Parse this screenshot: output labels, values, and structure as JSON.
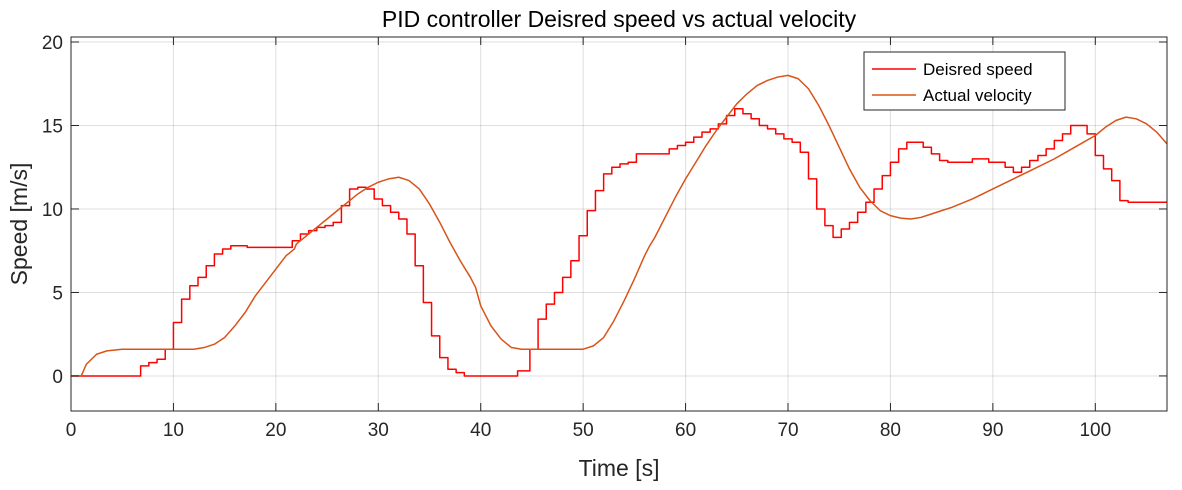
{
  "chart_data": {
    "type": "line",
    "title": "PID controller Deisred speed vs actual velocity",
    "xlabel": "Time [s]",
    "ylabel": "Speed [m/s]",
    "xlim": [
      0,
      107
    ],
    "ylim": [
      -2.1,
      20.3
    ],
    "xticks": [
      0,
      10,
      20,
      30,
      40,
      50,
      60,
      70,
      80,
      90,
      100
    ],
    "yticks": [
      0,
      5,
      10,
      15,
      20
    ],
    "grid": true,
    "box": true,
    "legend_position": "top-right",
    "series": [
      {
        "name": "Deisred speed",
        "color": "#ff0000",
        "step": true,
        "x": [
          0,
          6.8,
          7.6,
          8.4,
          9.2,
          10.0,
          10.8,
          11.6,
          12.4,
          13.2,
          14.0,
          14.8,
          15.6,
          16.4,
          17.2,
          18.0,
          21.6,
          22.4,
          23.2,
          24.0,
          24.8,
          25.6,
          26.4,
          27.2,
          28.0,
          28.8,
          29.6,
          30.4,
          31.2,
          32.0,
          32.8,
          33.6,
          34.4,
          35.2,
          36.0,
          36.8,
          37.6,
          38.4,
          39.2,
          40.0,
          43.6,
          44.8,
          45.6,
          46.4,
          47.2,
          48.0,
          48.8,
          49.6,
          50.4,
          51.2,
          52.0,
          52.8,
          53.6,
          54.4,
          55.2,
          56.0,
          56.8,
          58.4,
          59.2,
          60.0,
          60.8,
          61.6,
          62.4,
          63.2,
          64.0,
          64.8,
          65.6,
          66.4,
          67.2,
          68.0,
          68.8,
          69.6,
          70.4,
          71.2,
          72.0,
          72.8,
          73.6,
          74.4,
          75.2,
          76.0,
          76.8,
          77.6,
          78.4,
          79.2,
          80.0,
          80.8,
          81.6,
          83.2,
          84.0,
          84.8,
          85.6,
          86.4,
          88.0,
          89.6,
          91.2,
          92.0,
          92.8,
          93.6,
          94.4,
          95.2,
          96.0,
          96.8,
          97.6,
          99.2,
          100.0,
          100.8,
          101.6,
          102.4,
          103.2
        ],
        "values": [
          0,
          0.6,
          0.8,
          1.0,
          1.6,
          3.2,
          4.6,
          5.4,
          5.9,
          6.6,
          7.3,
          7.6,
          7.8,
          7.8,
          7.7,
          7.7,
          8.1,
          8.5,
          8.7,
          8.9,
          9.0,
          9.2,
          10.2,
          11.2,
          11.3,
          11.2,
          10.6,
          10.2,
          9.8,
          9.4,
          8.5,
          6.6,
          4.4,
          2.4,
          1.1,
          0.4,
          0.2,
          0,
          0,
          0,
          0.3,
          1.6,
          3.4,
          4.3,
          5.0,
          5.9,
          6.9,
          8.4,
          9.9,
          11.1,
          12.1,
          12.5,
          12.7,
          12.8,
          13.3,
          13.3,
          13.3,
          13.6,
          13.8,
          14.0,
          14.3,
          14.6,
          14.8,
          15.1,
          15.6,
          16.0,
          15.7,
          15.4,
          15.0,
          14.8,
          14.5,
          14.2,
          14.0,
          13.4,
          11.8,
          10.0,
          9.0,
          8.3,
          8.8,
          9.2,
          9.8,
          10.4,
          11.2,
          12.0,
          12.8,
          13.6,
          14.0,
          13.7,
          13.3,
          12.9,
          12.8,
          12.8,
          13.0,
          12.8,
          12.5,
          12.2,
          12.5,
          12.9,
          13.2,
          13.6,
          14.1,
          14.5,
          15.0,
          14.5,
          13.2,
          12.4,
          11.7,
          10.5,
          10.4
        ]
      },
      {
        "name": "Actual velocity",
        "color": "#d95319",
        "step": false,
        "x": [
          0,
          1.0,
          1.5,
          2.5,
          3.5,
          5,
          8,
          10,
          11,
          12,
          13,
          14,
          15,
          16,
          17,
          18,
          19,
          20,
          21,
          21.8,
          22,
          23,
          24,
          25,
          26,
          27,
          28,
          29,
          30,
          31,
          32,
          33,
          34,
          35,
          36,
          37,
          38,
          39,
          39.5,
          40,
          41,
          42,
          43,
          44,
          50,
          51,
          52,
          53,
          54,
          55,
          56,
          56.5,
          57,
          58,
          59,
          60,
          61,
          62,
          63,
          64,
          65,
          66,
          67,
          68,
          69,
          70,
          71,
          72,
          73,
          74,
          75,
          76,
          77,
          78,
          79,
          80,
          81,
          82,
          83,
          84,
          85,
          86,
          88,
          90,
          92,
          94,
          96,
          98,
          100,
          101,
          102,
          103,
          104,
          105,
          106,
          107
        ],
        "values": [
          0,
          0,
          0.7,
          1.3,
          1.5,
          1.6,
          1.6,
          1.6,
          1.6,
          1.6,
          1.7,
          1.9,
          2.3,
          3.0,
          3.8,
          4.8,
          5.6,
          6.4,
          7.2,
          7.6,
          7.9,
          8.4,
          8.9,
          9.4,
          9.9,
          10.4,
          10.9,
          11.3,
          11.6,
          11.8,
          11.9,
          11.7,
          11.2,
          10.3,
          9.2,
          8.0,
          6.9,
          5.9,
          5.3,
          4.2,
          3.0,
          2.2,
          1.7,
          1.6,
          1.6,
          1.8,
          2.3,
          3.3,
          4.5,
          5.8,
          7.2,
          7.8,
          8.3,
          9.5,
          10.7,
          11.8,
          12.8,
          13.8,
          14.7,
          15.5,
          16.3,
          16.9,
          17.4,
          17.7,
          17.9,
          18.0,
          17.8,
          17.2,
          16.2,
          15.0,
          13.7,
          12.4,
          11.3,
          10.5,
          9.9,
          9.6,
          9.45,
          9.4,
          9.5,
          9.7,
          9.9,
          10.1,
          10.6,
          11.2,
          11.8,
          12.4,
          13.0,
          13.7,
          14.4,
          14.9,
          15.3,
          15.5,
          15.4,
          15.1,
          14.6,
          13.9
        ]
      }
    ]
  }
}
